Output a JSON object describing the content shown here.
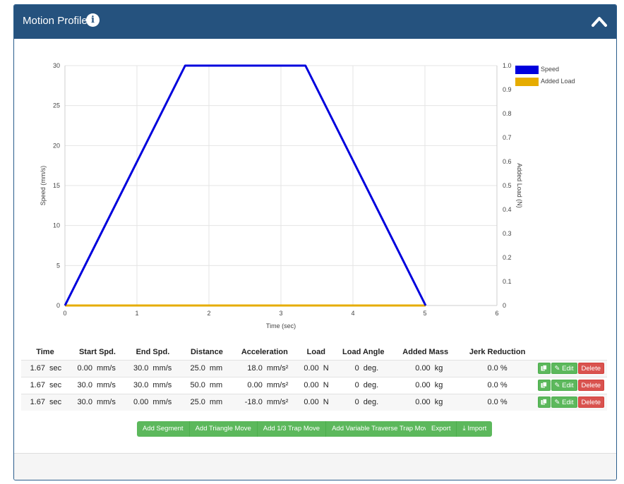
{
  "panel": {
    "title": "Motion Profile"
  },
  "colors": {
    "header": "#25527e",
    "speed": "#0000dd",
    "load": "#e6ac00",
    "button_green": "#5cb85c",
    "button_red": "#d9534f"
  },
  "icons": {
    "info": "info-icon",
    "collapse": "chevron-up-icon",
    "copy": "copy-icon",
    "edit": "pencil-icon",
    "import": "import-icon"
  },
  "chart_data": {
    "type": "line",
    "xlabel": "Time (sec)",
    "ylabel": "Speed (mm/s)",
    "y2label": "Added Load (N)",
    "xlim": [
      0,
      6
    ],
    "ylim": [
      0,
      30
    ],
    "y2lim": [
      0,
      1.0
    ],
    "x_ticks": [
      "0",
      "1",
      "2",
      "3",
      "4",
      "5",
      "6"
    ],
    "y_ticks": [
      "0",
      "5",
      "10",
      "15",
      "20",
      "25",
      "30"
    ],
    "y2_ticks": [
      "0",
      "0.1",
      "0.2",
      "0.3",
      "0.4",
      "0.5",
      "0.6",
      "0.7",
      "0.8",
      "0.9",
      "1.0"
    ],
    "grid": true,
    "legend_position": "right",
    "series": [
      {
        "name": "Speed",
        "axis": "left",
        "color": "#0000dd",
        "x": [
          0,
          1.67,
          3.34,
          5.01
        ],
        "y": [
          0,
          30,
          30,
          0
        ]
      },
      {
        "name": "Added Load",
        "axis": "right",
        "color": "#e6ac00",
        "x": [
          0,
          1.67,
          3.34,
          5.01
        ],
        "y": [
          0,
          0,
          0,
          0
        ]
      }
    ]
  },
  "table": {
    "headers": [
      "Time",
      "Start Spd.",
      "End Spd.",
      "Distance",
      "Acceleration",
      "Load",
      "Load Angle",
      "Added Mass",
      "Jerk Reduction",
      ""
    ],
    "rows": [
      {
        "time": "1.67",
        "time_unit": "sec",
        "start": "0.00",
        "start_unit": "mm/s",
        "end": "30.0",
        "end_unit": "mm/s",
        "dist": "25.0",
        "dist_unit": "mm",
        "acc": "18.0",
        "acc_unit": "mm/s²",
        "load": "0.00",
        "load_unit": "N",
        "angle": "0",
        "angle_unit": "deg.",
        "mass": "0.00",
        "mass_unit": "kg",
        "jerk": "0.0 %"
      },
      {
        "time": "1.67",
        "time_unit": "sec",
        "start": "30.0",
        "start_unit": "mm/s",
        "end": "30.0",
        "end_unit": "mm/s",
        "dist": "50.0",
        "dist_unit": "mm",
        "acc": "0.00",
        "acc_unit": "mm/s²",
        "load": "0.00",
        "load_unit": "N",
        "angle": "0",
        "angle_unit": "deg.",
        "mass": "0.00",
        "mass_unit": "kg",
        "jerk": "0.0 %"
      },
      {
        "time": "1.67",
        "time_unit": "sec",
        "start": "30.0",
        "start_unit": "mm/s",
        "end": "0.00",
        "end_unit": "mm/s",
        "dist": "25.0",
        "dist_unit": "mm",
        "acc": "-18.0",
        "acc_unit": "mm/s²",
        "load": "0.00",
        "load_unit": "N",
        "angle": "0",
        "angle_unit": "deg.",
        "mass": "0.00",
        "mass_unit": "kg",
        "jerk": "0.0 %"
      }
    ],
    "row_actions": {
      "edit": "Edit",
      "delete": "Delete"
    }
  },
  "toolbar_add": [
    "Add Segment",
    "Add Triangle Move",
    "Add 1/3 Trap Move",
    "Add Variable Traverse Trap Move"
  ],
  "toolbar_io": {
    "export": "Export",
    "import": "Import"
  }
}
